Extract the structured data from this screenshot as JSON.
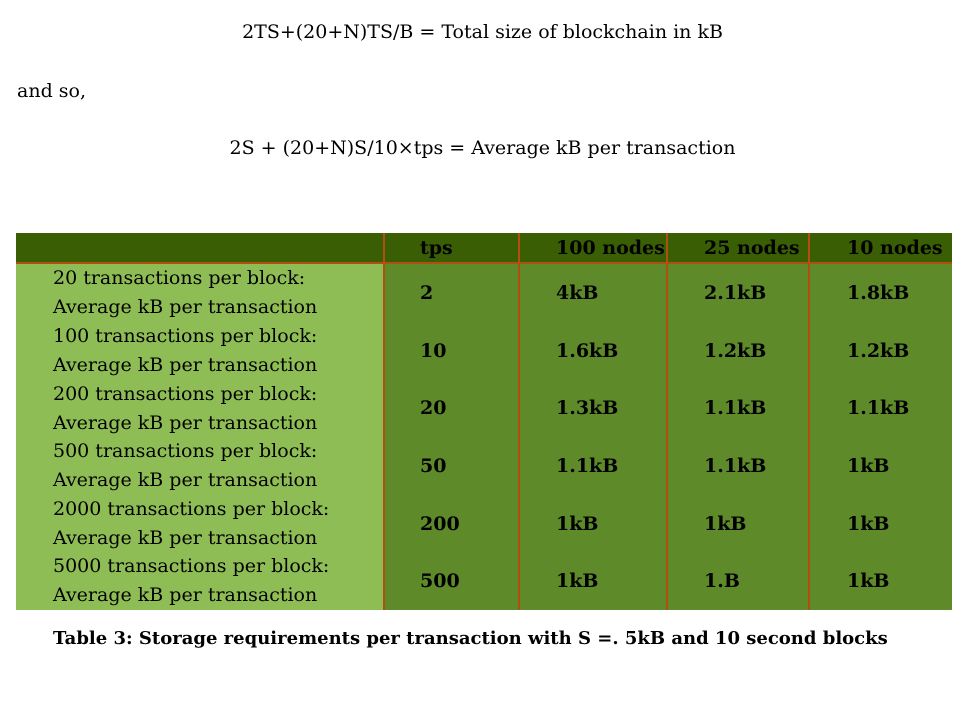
{
  "formula1": "2TS+(20+N)TS/B = Total size of blockchain in kB",
  "and_so": "and so,",
  "formula2": "2S + (20+N)S/10×tps = Average kB per transaction",
  "table": {
    "headers": [
      "",
      "tps",
      "100 nodes",
      "25 nodes",
      "10 nodes"
    ],
    "rows": [
      {
        "label1": "20 transactions per block:",
        "label2": "Average kB per transaction",
        "tps": "2",
        "n100": "4kB",
        "n25": "2.1kB",
        "n10": "1.8kB"
      },
      {
        "label1": "100 transactions per block:",
        "label2": "Average kB per transaction",
        "tps": "10",
        "n100": "1.6kB",
        "n25": "1.2kB",
        "n10": "1.2kB"
      },
      {
        "label1": "200 transactions per block:",
        "label2": "Average kB per transaction",
        "tps": "20",
        "n100": "1.3kB",
        "n25": "1.1kB",
        "n10": "1.1kB"
      },
      {
        "label1": "500 transactions per block:",
        "label2": "Average kB per transaction",
        "tps": "50",
        "n100": "1.1kB",
        "n25": "1.1kB",
        "n10": "1kB"
      },
      {
        "label1": "2000 transactions per block:",
        "label2": "Average kB per transaction",
        "tps": "200",
        "n100": "1kB",
        "n25": "1kB",
        "n10": "1kB"
      },
      {
        "label1": "5000 transactions per block:",
        "label2": "Average kB per transaction",
        "tps": "500",
        "n100": "1kB",
        "n25": "1.B",
        "n10": "1kB"
      }
    ]
  },
  "caption": "Table 3: Storage requirements per transaction with S =. 5kB and 10 second blocks",
  "colors": {
    "header_band": "#3a5e04",
    "left_column": "#8fbd55",
    "body_cells": "#5e8a2a",
    "grid_lines": "#b04f0e"
  }
}
